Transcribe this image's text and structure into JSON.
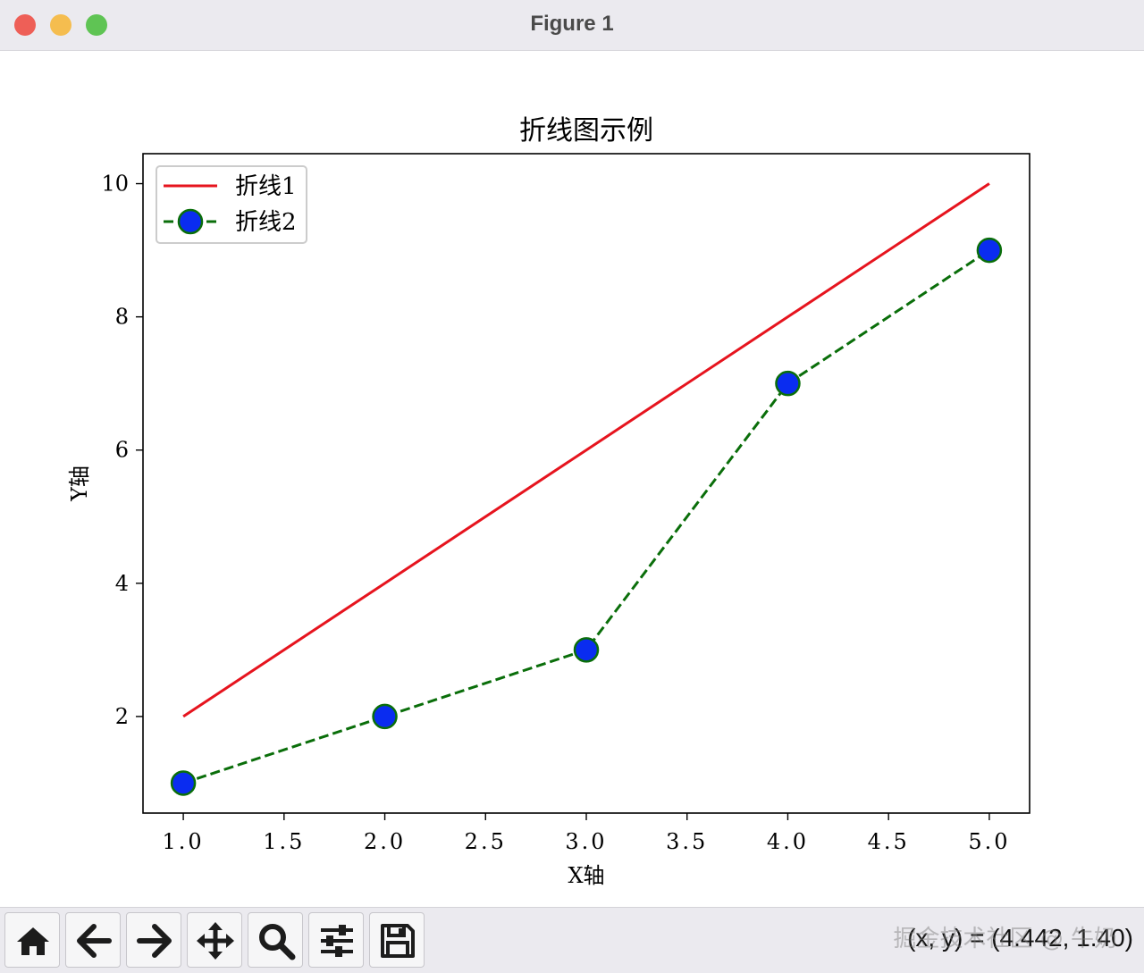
{
  "window": {
    "title": "Figure 1"
  },
  "chart_data": {
    "type": "line",
    "title": "折线图示例",
    "xlabel": "X轴",
    "ylabel": "Y轴",
    "xlim": [
      0.8,
      5.2
    ],
    "ylim": [
      0.55,
      10.45
    ],
    "xticks": [
      1.0,
      1.5,
      2.0,
      2.5,
      3.0,
      3.5,
      4.0,
      4.5,
      5.0
    ],
    "xtick_labels": [
      "1.0",
      "1.5",
      "2.0",
      "2.5",
      "3.0",
      "3.5",
      "4.0",
      "4.5",
      "5.0"
    ],
    "yticks": [
      2,
      4,
      6,
      8,
      10
    ],
    "ytick_labels": [
      "2",
      "4",
      "6",
      "8",
      "10"
    ],
    "grid": false,
    "legend_position": "upper-left",
    "series": [
      {
        "name": "折线1",
        "x": [
          1,
          2,
          3,
          4,
          5
        ],
        "y": [
          2,
          4,
          6,
          8,
          10
        ],
        "color": "#e6141e",
        "linestyle": "solid",
        "marker": "none"
      },
      {
        "name": "折线2",
        "x": [
          1,
          2,
          3,
          4,
          5
        ],
        "y": [
          1,
          2,
          3,
          7,
          9
        ],
        "color": "#0a6e0a",
        "linestyle": "dashed",
        "marker": "circle",
        "marker_face": "#0a2cf0",
        "marker_edge": "#0a6e0a"
      }
    ]
  },
  "toolbar": {
    "buttons": [
      {
        "name": "home-button",
        "icon": "home-icon"
      },
      {
        "name": "back-button",
        "icon": "arrow-left-icon"
      },
      {
        "name": "forward-button",
        "icon": "arrow-right-icon"
      },
      {
        "name": "pan-button",
        "icon": "move-icon"
      },
      {
        "name": "zoom-button",
        "icon": "magnifier-icon"
      },
      {
        "name": "configure-subplots-button",
        "icon": "sliders-icon"
      },
      {
        "name": "save-button",
        "icon": "floppy-disk-icon"
      }
    ],
    "coords": "(x, y) = (4.442, 1.40)",
    "watermark": "掘金技术社区 @ 牛奶"
  }
}
